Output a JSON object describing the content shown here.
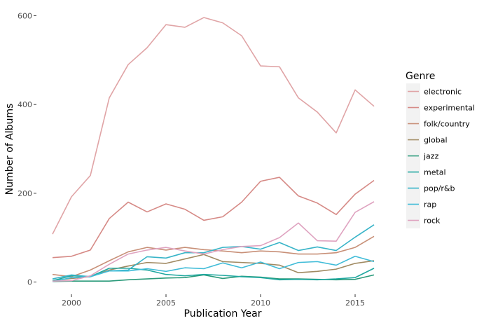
{
  "chart_data": {
    "type": "line",
    "xlabel": "Publication Year",
    "ylabel": "Number of Albums",
    "x": [
      1999,
      2000,
      2001,
      2002,
      2003,
      2004,
      2005,
      2006,
      2007,
      2008,
      2009,
      2010,
      2011,
      2012,
      2013,
      2014,
      2015,
      2016
    ],
    "xlim": [
      1999,
      2016
    ],
    "ylim": [
      0,
      600
    ],
    "xticks": [
      2000,
      2005,
      2010,
      2015
    ],
    "yticks": [
      0,
      200,
      400,
      600
    ],
    "grid": false,
    "legend": {
      "title": "Genre",
      "position": "right"
    },
    "series": [
      {
        "name": "electronic",
        "color": "#e0a4a6",
        "values": [
          108,
          192,
          240,
          415,
          490,
          528,
          580,
          574,
          596,
          584,
          555,
          487,
          485,
          415,
          383,
          336,
          433,
          396
        ]
      },
      {
        "name": "experimental",
        "color": "#d68a86",
        "values": [
          55,
          58,
          72,
          143,
          180,
          158,
          176,
          164,
          139,
          147,
          180,
          227,
          236,
          194,
          178,
          152,
          198,
          229
        ]
      },
      {
        "name": "folk/country",
        "color": "#c89078",
        "values": [
          17,
          12,
          27,
          48,
          68,
          78,
          72,
          78,
          73,
          70,
          66,
          70,
          68,
          63,
          63,
          66,
          78,
          103
        ]
      },
      {
        "name": "global",
        "color": "#a08a62",
        "values": [
          3,
          8,
          12,
          27,
          36,
          44,
          42,
          52,
          62,
          46,
          44,
          42,
          38,
          21,
          24,
          29,
          42,
          48
        ]
      },
      {
        "name": "jazz",
        "color": "#2a9a7a",
        "values": [
          1,
          2,
          2,
          2,
          5,
          7,
          9,
          10,
          16,
          8,
          13,
          11,
          7,
          7,
          6,
          5,
          6,
          16
        ]
      },
      {
        "name": "metal",
        "color": "#20a8a0",
        "values": [
          3,
          14,
          12,
          31,
          31,
          27,
          17,
          14,
          17,
          15,
          12,
          10,
          5,
          6,
          5,
          7,
          10,
          31
        ]
      },
      {
        "name": "pop/r&b",
        "color": "#38b4c8",
        "values": [
          7,
          16,
          12,
          25,
          27,
          57,
          54,
          66,
          66,
          78,
          80,
          74,
          89,
          71,
          79,
          71,
          101,
          129
        ]
      },
      {
        "name": "rap",
        "color": "#40bcd8",
        "values": [
          1,
          10,
          12,
          25,
          25,
          30,
          24,
          32,
          30,
          43,
          32,
          45,
          30,
          44,
          46,
          38,
          58,
          46
        ]
      },
      {
        "name": "rock",
        "color": "#dfa3c0",
        "values": [
          2,
          3,
          14,
          40,
          63,
          72,
          78,
          70,
          63,
          73,
          80,
          82,
          100,
          133,
          93,
          92,
          157,
          181
        ]
      }
    ]
  }
}
